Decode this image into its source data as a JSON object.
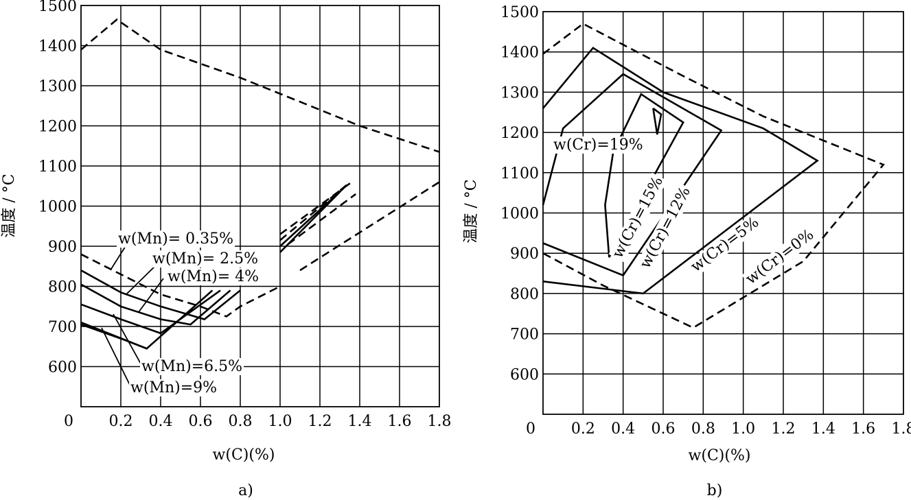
{
  "chart_data": [
    {
      "type": "line",
      "panel_label": "a)",
      "xlabel": "w(C)(%)",
      "ylabel": "温度 / °C",
      "xlim": [
        0,
        1.8
      ],
      "ylim": [
        500,
        1500
      ],
      "x_ticks": [
        "0",
        "0.2",
        "0.4",
        "0.6",
        "0.8",
        "1.0",
        "1.2",
        "1.4",
        "1.6",
        "1.8"
      ],
      "y_ticks": [
        "600",
        "700",
        "800",
        "900",
        "1000",
        "1100",
        "1200",
        "1300",
        "1400",
        "1500"
      ],
      "grid": true,
      "series": [
        {
          "name": "",
          "style": "dashed",
          "points": [
            [
              0,
              1390
            ],
            [
              0.18,
              1465
            ],
            [
              0.4,
              1390
            ],
            [
              0.8,
              1320
            ],
            [
              1.4,
              1200
            ],
            [
              1.8,
              1135
            ]
          ]
        },
        {
          "name": "",
          "style": "dashed",
          "points": [
            [
              0,
              880
            ],
            [
              0.4,
              780
            ],
            [
              0.6,
              750
            ],
            [
              0.73,
              725
            ],
            [
              0.8,
              750
            ],
            [
              1.0,
              800
            ]
          ]
        },
        {
          "name": "",
          "style": "dashed",
          "points": [
            [
              1.1,
              840
            ],
            [
              1.8,
              1060
            ]
          ]
        },
        {
          "name": "w(Mn)= 0.35%",
          "style": "solid",
          "points": [
            [
              0,
              840
            ],
            [
              0.2,
              785
            ],
            [
              0.4,
              750
            ],
            [
              0.62,
              718
            ],
            [
              0.8,
              790
            ]
          ]
        },
        {
          "name": "w(Mn)= 2.5%",
          "style": "solid",
          "points": [
            [
              0,
              805
            ],
            [
              0.2,
              750
            ],
            [
              0.4,
              718
            ],
            [
              0.55,
              705
            ],
            [
              0.75,
              790
            ]
          ]
        },
        {
          "name": "w(Mn)= 4%",
          "style": "solid",
          "points": [
            [
              0,
              755
            ],
            [
              0.2,
              718
            ],
            [
              0.4,
              683
            ],
            [
              0.7,
              790
            ]
          ]
        },
        {
          "name": "w(Mn)=6.5%",
          "style": "solid",
          "points": [
            [
              0,
              710
            ],
            [
              0.33,
              645
            ],
            [
              0.66,
              790
            ]
          ]
        },
        {
          "name": "w(Mn)=9%",
          "style": "solid",
          "points": [
            [
              0,
              705
            ],
            [
              0.2,
              670
            ],
            [
              0.33,
              645
            ]
          ]
        }
      ],
      "extra_segments": [
        {
          "style": "solid",
          "points": [
            [
              1.0,
              885
            ],
            [
              1.3,
              1035
            ]
          ]
        },
        {
          "style": "solid",
          "points": [
            [
              1.0,
              900
            ],
            [
              1.32,
              1045
            ]
          ]
        },
        {
          "style": "dashed",
          "points": [
            [
              1.0,
              915
            ],
            [
              1.34,
              1055
            ]
          ]
        },
        {
          "style": "dashed",
          "points": [
            [
              1.0,
              930
            ],
            [
              1.36,
              1060
            ]
          ]
        },
        {
          "style": "dashed",
          "points": [
            [
              1.04,
              905
            ],
            [
              1.38,
              1030
            ]
          ]
        }
      ],
      "labels": [
        "w(Mn)= 0.35%",
        "w(Mn)= 2.5%",
        "w(Mn)= 4%",
        "w(Mn)=6.5%",
        "w(Mn)=9%"
      ]
    },
    {
      "type": "line",
      "panel_label": "b)",
      "xlabel": "w(C)(%)",
      "ylabel": "温度 / °C",
      "xlim": [
        0,
        1.8
      ],
      "ylim": [
        500,
        1500
      ],
      "x_ticks": [
        "0",
        "0.2",
        "0.4",
        "0.6",
        "0.8",
        "1.0",
        "1.2",
        "1.4",
        "1.6",
        "1.8"
      ],
      "y_ticks": [
        "600",
        "700",
        "800",
        "900",
        "1000",
        "1100",
        "1200",
        "1300",
        "1400",
        "1500"
      ],
      "grid": true,
      "series": [
        {
          "name": "w(Cr)=0%",
          "style": "dashed",
          "points": [
            [
              0,
              1395
            ],
            [
              0.2,
              1470
            ],
            [
              0.7,
              1340
            ],
            [
              1.1,
              1240
            ],
            [
              1.7,
              1120
            ],
            [
              1.3,
              880
            ],
            [
              0.75,
              715
            ],
            [
              0.3,
              820
            ],
            [
              0,
              900
            ]
          ]
        },
        {
          "name": "w(Cr)=5%",
          "style": "solid",
          "points": [
            [
              0,
              1260
            ],
            [
              0.25,
              1410
            ],
            [
              0.6,
              1300
            ],
            [
              1.1,
              1210
            ],
            [
              1.37,
              1130
            ],
            [
              0.5,
              800
            ],
            [
              0,
              830
            ]
          ]
        },
        {
          "name": "w(Cr)=12%",
          "style": "solid",
          "points": [
            [
              0,
              1020
            ],
            [
              0.1,
              1210
            ],
            [
              0.4,
              1345
            ],
            [
              0.89,
              1205
            ],
            [
              0.4,
              845
            ],
            [
              0,
              925
            ]
          ]
        },
        {
          "name": "w(Cr)=15%",
          "style": "solid",
          "points": [
            [
              0.33,
              890
            ],
            [
              0.31,
              1020
            ],
            [
              0.35,
              1150
            ],
            [
              0.49,
              1295
            ],
            [
              0.7,
              1225
            ],
            [
              0.33,
              890
            ]
          ]
        },
        {
          "name": "w(Cr)=19%",
          "style": "solid",
          "points": [
            [
              0.55,
              1260
            ],
            [
              0.59,
              1245
            ],
            [
              0.57,
              1195
            ],
            [
              0.55,
              1260
            ]
          ]
        }
      ],
      "labels": [
        "w(Cr)=19%",
        "w(Cr)=15%",
        "w(Cr)=12%",
        "w(Cr)=5%",
        "w(Cr)=0%"
      ]
    }
  ]
}
